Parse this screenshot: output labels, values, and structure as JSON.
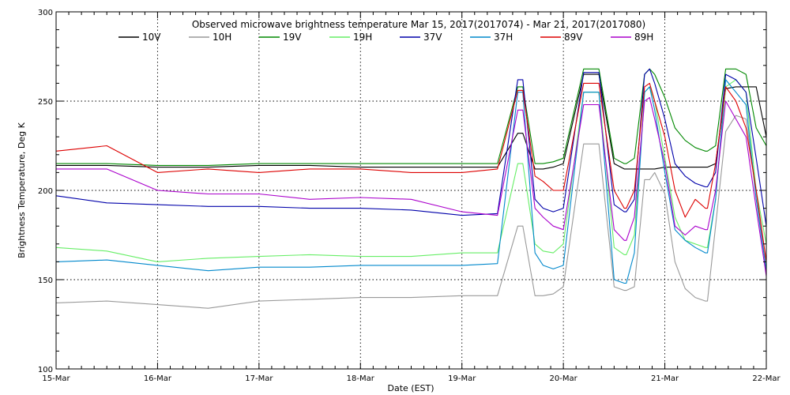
{
  "chart_data": {
    "type": "line",
    "title": "Observed microwave brightness temperature Mar 15, 2017(2017074) - Mar 21, 2017(2017080)",
    "xlabel": "Date (EST)",
    "ylabel": "Brightness Temperature, Deg K",
    "xlim": [
      0,
      7
    ],
    "ylim": [
      100,
      300
    ],
    "grid": true,
    "legend_position": "top",
    "x_ticks": [
      {
        "value": 0,
        "label": "15-Mar"
      },
      {
        "value": 1,
        "label": "16-Mar"
      },
      {
        "value": 2,
        "label": "17-Mar"
      },
      {
        "value": 3,
        "label": "18-Mar"
      },
      {
        "value": 4,
        "label": "19-Mar"
      },
      {
        "value": 5,
        "label": "20-Mar"
      },
      {
        "value": 6,
        "label": "21-Mar"
      },
      {
        "value": 7,
        "label": "22-Mar"
      }
    ],
    "y_ticks": [
      {
        "value": 100,
        "label": "100"
      },
      {
        "value": 150,
        "label": "150"
      },
      {
        "value": 200,
        "label": "200"
      },
      {
        "value": 250,
        "label": "250"
      },
      {
        "value": 300,
        "label": "300"
      }
    ],
    "x_unit": "days since 15-Mar 00:00 EST",
    "series": [
      {
        "name": "10V",
        "color": "#000000",
        "x": [
          0,
          0.5,
          1,
          1.5,
          2,
          2.5,
          3,
          3.5,
          4,
          4.35,
          4.55,
          4.6,
          4.72,
          4.8,
          4.9,
          5,
          5.2,
          5.35,
          5.5,
          5.6,
          5.62,
          5.7,
          5.8,
          5.85,
          5.9,
          6,
          6.1,
          6.2,
          6.3,
          6.4,
          6.42,
          6.5,
          6.6,
          6.7,
          6.8,
          6.9,
          7
        ],
        "y": [
          214,
          214,
          213,
          213,
          214,
          214,
          213,
          213,
          213,
          213,
          232,
          232,
          212,
          212,
          213,
          215,
          265,
          265,
          215,
          212,
          212,
          212,
          212,
          212,
          212,
          213,
          213,
          213,
          213,
          213,
          213,
          215,
          257,
          258,
          258,
          258,
          230
        ]
      },
      {
        "name": "10H",
        "color": "#999999",
        "x": [
          0,
          0.5,
          1,
          1.5,
          2,
          2.5,
          3,
          3.5,
          4,
          4.35,
          4.55,
          4.6,
          4.72,
          4.8,
          4.9,
          5,
          5.2,
          5.35,
          5.5,
          5.6,
          5.62,
          5.7,
          5.8,
          5.85,
          5.9,
          6,
          6.1,
          6.2,
          6.3,
          6.4,
          6.42,
          6.5,
          6.6,
          6.7,
          6.8,
          6.9,
          7
        ],
        "y": [
          137,
          138,
          136,
          134,
          138,
          139,
          140,
          140,
          141,
          141,
          180,
          180,
          141,
          141,
          142,
          146,
          226,
          226,
          146,
          144,
          144,
          146,
          206,
          206,
          210,
          198,
          160,
          145,
          140,
          138,
          138,
          180,
          233,
          242,
          240,
          200,
          155
        ]
      },
      {
        "name": "19V",
        "color": "#008800",
        "x": [
          0,
          0.5,
          1,
          1.5,
          2,
          2.5,
          3,
          3.5,
          4,
          4.35,
          4.55,
          4.6,
          4.72,
          4.8,
          4.9,
          5,
          5.2,
          5.35,
          5.5,
          5.6,
          5.62,
          5.7,
          5.8,
          5.85,
          5.9,
          6,
          6.1,
          6.2,
          6.3,
          6.4,
          6.42,
          6.5,
          6.6,
          6.7,
          6.8,
          6.9,
          7
        ],
        "y": [
          215,
          215,
          214,
          214,
          215,
          215,
          215,
          215,
          215,
          215,
          258,
          258,
          215,
          215,
          216,
          218,
          268,
          268,
          218,
          215,
          215,
          218,
          265,
          268,
          265,
          252,
          235,
          228,
          224,
          222,
          222,
          225,
          268,
          268,
          265,
          235,
          225
        ]
      },
      {
        "name": "19H",
        "color": "#66ee66",
        "x": [
          0,
          0.5,
          1,
          1.5,
          2,
          2.5,
          3,
          3.5,
          4,
          4.35,
          4.55,
          4.6,
          4.72,
          4.8,
          4.9,
          5,
          5.2,
          5.35,
          5.5,
          5.6,
          5.62,
          5.7,
          5.8,
          5.85,
          5.9,
          6,
          6.1,
          6.2,
          6.3,
          6.4,
          6.42,
          6.5,
          6.6,
          6.7,
          6.8,
          6.9,
          7
        ],
        "y": [
          168,
          166,
          160,
          162,
          163,
          164,
          163,
          163,
          165,
          165,
          215,
          215,
          170,
          166,
          165,
          170,
          255,
          255,
          168,
          164,
          164,
          175,
          255,
          258,
          250,
          218,
          185,
          172,
          170,
          168,
          168,
          195,
          258,
          262,
          255,
          200,
          170
        ]
      },
      {
        "name": "37V",
        "color": "#0000aa",
        "x": [
          0,
          0.5,
          1,
          1.5,
          2,
          2.5,
          3,
          3.5,
          4,
          4.35,
          4.55,
          4.6,
          4.72,
          4.8,
          4.9,
          5,
          5.2,
          5.35,
          5.5,
          5.6,
          5.62,
          5.7,
          5.8,
          5.85,
          5.9,
          6,
          6.1,
          6.2,
          6.3,
          6.4,
          6.42,
          6.5,
          6.6,
          6.7,
          6.8,
          6.9,
          7
        ],
        "y": [
          197,
          193,
          192,
          191,
          191,
          190,
          190,
          189,
          186,
          187,
          262,
          262,
          195,
          190,
          188,
          190,
          266,
          266,
          192,
          188,
          188,
          195,
          265,
          268,
          260,
          240,
          215,
          208,
          204,
          202,
          202,
          210,
          265,
          262,
          255,
          218,
          180
        ]
      },
      {
        "name": "37H",
        "color": "#0088cc",
        "x": [
          0,
          0.5,
          1,
          1.5,
          2,
          2.5,
          3,
          3.5,
          4,
          4.35,
          4.55,
          4.6,
          4.72,
          4.8,
          4.9,
          5,
          5.2,
          5.35,
          5.5,
          5.6,
          5.62,
          5.7,
          5.8,
          5.85,
          5.9,
          6,
          6.1,
          6.2,
          6.3,
          6.4,
          6.42,
          6.5,
          6.6,
          6.7,
          6.8,
          6.9,
          7
        ],
        "y": [
          160,
          161,
          158,
          155,
          157,
          157,
          158,
          158,
          158,
          159,
          255,
          255,
          165,
          158,
          156,
          158,
          255,
          255,
          150,
          148,
          148,
          165,
          255,
          258,
          245,
          210,
          178,
          172,
          168,
          165,
          165,
          195,
          262,
          255,
          248,
          195,
          155
        ]
      },
      {
        "name": "89V",
        "color": "#dd0000",
        "x": [
          0,
          0.5,
          1,
          1.5,
          2,
          2.5,
          3,
          3.5,
          4,
          4.35,
          4.55,
          4.6,
          4.72,
          4.8,
          4.9,
          5,
          5.2,
          5.35,
          5.5,
          5.6,
          5.62,
          5.7,
          5.8,
          5.85,
          5.9,
          6,
          6.1,
          6.2,
          6.3,
          6.4,
          6.42,
          6.5,
          6.6,
          6.7,
          6.8,
          6.9,
          7
        ],
        "y": [
          222,
          225,
          210,
          212,
          210,
          212,
          212,
          210,
          210,
          212,
          256,
          256,
          208,
          205,
          200,
          200,
          260,
          260,
          200,
          190,
          190,
          200,
          258,
          260,
          250,
          230,
          200,
          185,
          195,
          190,
          190,
          215,
          258,
          250,
          235,
          200,
          160
        ]
      },
      {
        "name": "89H",
        "color": "#aa00cc",
        "x": [
          0,
          0.5,
          1,
          1.5,
          2,
          2.5,
          3,
          3.5,
          4,
          4.35,
          4.55,
          4.6,
          4.72,
          4.8,
          4.9,
          5,
          5.2,
          5.35,
          5.5,
          5.6,
          5.62,
          5.7,
          5.8,
          5.85,
          5.9,
          6,
          6.1,
          6.2,
          6.3,
          6.4,
          6.42,
          6.5,
          6.6,
          6.7,
          6.8,
          6.9,
          7
        ],
        "y": [
          212,
          212,
          200,
          198,
          198,
          195,
          196,
          195,
          188,
          186,
          245,
          245,
          190,
          185,
          180,
          178,
          248,
          248,
          178,
          172,
          172,
          185,
          250,
          252,
          240,
          215,
          180,
          175,
          180,
          178,
          178,
          200,
          250,
          240,
          230,
          190,
          152
        ]
      }
    ]
  }
}
